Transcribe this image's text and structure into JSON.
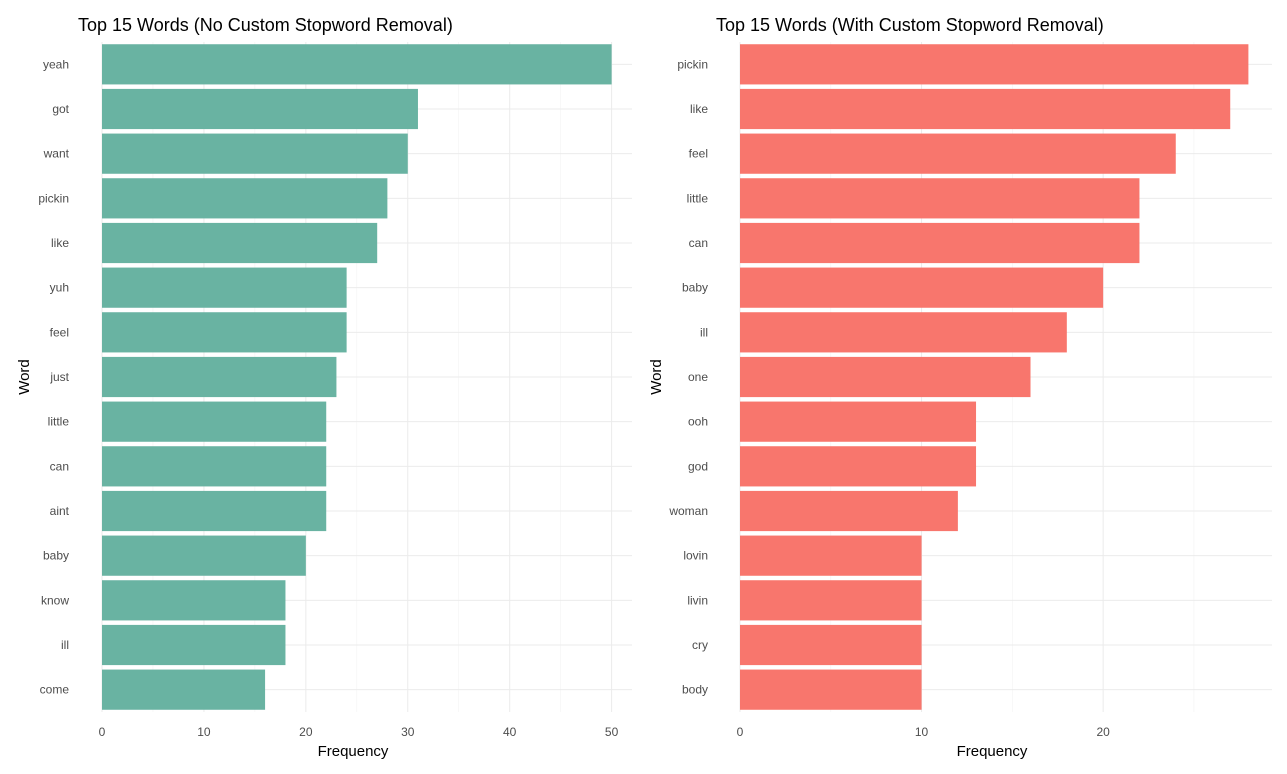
{
  "chart_data": [
    {
      "type": "bar",
      "orientation": "horizontal",
      "title": "Top 15 Words (No Custom Stopword Removal)",
      "xlabel": "Frequency",
      "ylabel": "Word",
      "xlim": [
        0,
        52
      ],
      "xticks": [
        0,
        10,
        20,
        30,
        40,
        50
      ],
      "grid": true,
      "bar_color": "#69b3a2",
      "categories": [
        "yeah",
        "got",
        "want",
        "pickin",
        "like",
        "yuh",
        "feel",
        "just",
        "little",
        "can",
        "aint",
        "baby",
        "know",
        "ill",
        "come"
      ],
      "values": [
        50,
        31,
        30,
        28,
        27,
        24,
        24,
        23,
        22,
        22,
        22,
        20,
        18,
        18,
        16
      ]
    },
    {
      "type": "bar",
      "orientation": "horizontal",
      "title": "Top 15 Words (With Custom Stopword Removal)",
      "xlabel": "Frequency",
      "ylabel": "Word",
      "xlim": [
        0,
        29.3
      ],
      "xticks": [
        0,
        10,
        20
      ],
      "grid": true,
      "bar_color": "#f8766d",
      "categories": [
        "pickin",
        "like",
        "feel",
        "little",
        "can",
        "baby",
        "ill",
        "one",
        "ooh",
        "god",
        "woman",
        "lovin",
        "livin",
        "cry",
        "body"
      ],
      "values": [
        28,
        27,
        24,
        22,
        22,
        20,
        18,
        16,
        13,
        13,
        12,
        10,
        10,
        10,
        10
      ]
    }
  ]
}
